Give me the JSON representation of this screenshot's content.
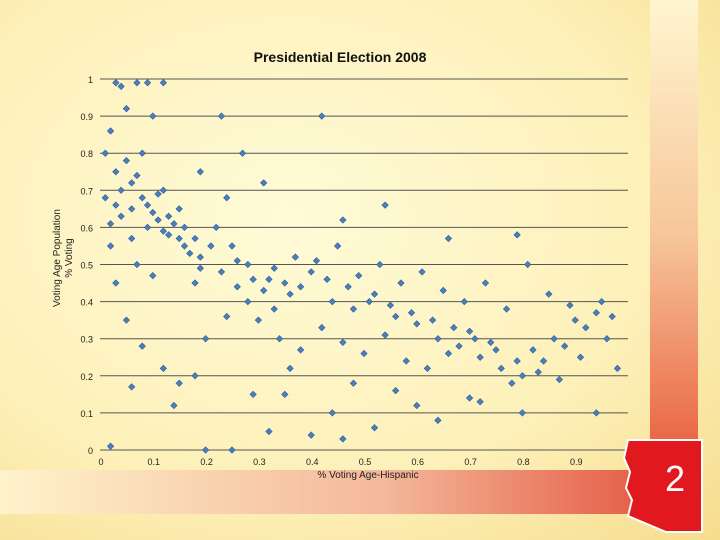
{
  "chart_data": {
    "type": "scatter",
    "title": "Presidential Election 2008",
    "xlabel": "% Voting Age-Hispanic",
    "ylabel_line1": "Voting Age Population",
    "ylabel_line2": "% Voting",
    "xlim": [
      0,
      1
    ],
    "ylim": [
      0,
      1
    ],
    "xticks": [
      "0",
      "0.1",
      "0.2",
      "0.3",
      "0.4",
      "0.5",
      "0.6",
      "0.7",
      "0.8",
      "0.9"
    ],
    "yticks": [
      "0",
      "0.1",
      "0.2",
      "0.3",
      "0.4",
      "0.5",
      "0.6",
      "0.7",
      "0.8",
      "0.9",
      "1"
    ],
    "grid": "horizontal",
    "marker_color": "#4a7ebd",
    "points": [
      [
        0.03,
        0.99
      ],
      [
        0.04,
        0.98
      ],
      [
        0.07,
        0.99
      ],
      [
        0.09,
        0.99
      ],
      [
        0.12,
        0.99
      ],
      [
        0.06,
        0.72
      ],
      [
        0.08,
        0.68
      ],
      [
        0.02,
        0.86
      ],
      [
        0.05,
        0.92
      ],
      [
        0.1,
        0.9
      ],
      [
        0.01,
        0.8
      ],
      [
        0.03,
        0.75
      ],
      [
        0.12,
        0.7
      ],
      [
        0.15,
        0.65
      ],
      [
        0.04,
        0.63
      ],
      [
        0.09,
        0.6
      ],
      [
        0.13,
        0.58
      ],
      [
        0.02,
        0.55
      ],
      [
        0.06,
        0.57
      ],
      [
        0.11,
        0.62
      ],
      [
        0.16,
        0.55
      ],
      [
        0.07,
        0.5
      ],
      [
        0.19,
        0.52
      ],
      [
        0.22,
        0.6
      ],
      [
        0.25,
        0.55
      ],
      [
        0.28,
        0.5
      ],
      [
        0.03,
        0.45
      ],
      [
        0.1,
        0.47
      ],
      [
        0.18,
        0.45
      ],
      [
        0.26,
        0.44
      ],
      [
        0.32,
        0.46
      ],
      [
        0.36,
        0.42
      ],
      [
        0.4,
        0.48
      ],
      [
        0.44,
        0.4
      ],
      [
        0.48,
        0.38
      ],
      [
        0.52,
        0.42
      ],
      [
        0.56,
        0.36
      ],
      [
        0.6,
        0.34
      ],
      [
        0.64,
        0.3
      ],
      [
        0.68,
        0.28
      ],
      [
        0.72,
        0.25
      ],
      [
        0.76,
        0.22
      ],
      [
        0.8,
        0.2
      ],
      [
        0.84,
        0.24
      ],
      [
        0.88,
        0.28
      ],
      [
        0.92,
        0.33
      ],
      [
        0.95,
        0.4
      ],
      [
        0.98,
        0.22
      ],
      [
        0.3,
        0.35
      ],
      [
        0.34,
        0.3
      ],
      [
        0.38,
        0.27
      ],
      [
        0.42,
        0.33
      ],
      [
        0.46,
        0.29
      ],
      [
        0.5,
        0.26
      ],
      [
        0.54,
        0.31
      ],
      [
        0.58,
        0.24
      ],
      [
        0.62,
        0.22
      ],
      [
        0.66,
        0.26
      ],
      [
        0.7,
        0.32
      ],
      [
        0.74,
        0.29
      ],
      [
        0.78,
        0.18
      ],
      [
        0.82,
        0.27
      ],
      [
        0.86,
        0.3
      ],
      [
        0.9,
        0.35
      ],
      [
        0.94,
        0.37
      ],
      [
        0.05,
        0.35
      ],
      [
        0.08,
        0.28
      ],
      [
        0.12,
        0.22
      ],
      [
        0.15,
        0.18
      ],
      [
        0.2,
        0.3
      ],
      [
        0.24,
        0.36
      ],
      [
        0.28,
        0.4
      ],
      [
        0.33,
        0.38
      ],
      [
        0.37,
        0.52
      ],
      [
        0.41,
        0.51
      ],
      [
        0.45,
        0.55
      ],
      [
        0.49,
        0.47
      ],
      [
        0.53,
        0.5
      ],
      [
        0.57,
        0.45
      ],
      [
        0.61,
        0.48
      ],
      [
        0.65,
        0.43
      ],
      [
        0.69,
        0.4
      ],
      [
        0.73,
        0.45
      ],
      [
        0.77,
        0.38
      ],
      [
        0.81,
        0.5
      ],
      [
        0.85,
        0.42
      ],
      [
        0.89,
        0.39
      ],
      [
        0.23,
        0.9
      ],
      [
        0.42,
        0.9
      ],
      [
        0.27,
        0.8
      ],
      [
        0.31,
        0.72
      ],
      [
        0.19,
        0.75
      ],
      [
        0.24,
        0.68
      ],
      [
        0.46,
        0.62
      ],
      [
        0.54,
        0.66
      ],
      [
        0.66,
        0.57
      ],
      [
        0.79,
        0.58
      ],
      [
        0.35,
        0.15
      ],
      [
        0.44,
        0.1
      ],
      [
        0.52,
        0.06
      ],
      [
        0.6,
        0.12
      ],
      [
        0.7,
        0.14
      ],
      [
        0.8,
        0.1
      ],
      [
        0.94,
        0.1
      ],
      [
        0.2,
        0.0
      ],
      [
        0.25,
        0.0
      ],
      [
        0.32,
        0.05
      ],
      [
        0.4,
        0.04
      ],
      [
        0.46,
        0.03
      ],
      [
        0.02,
        0.01
      ],
      [
        0.06,
        0.17
      ],
      [
        0.14,
        0.12
      ],
      [
        0.18,
        0.2
      ],
      [
        0.29,
        0.15
      ],
      [
        0.36,
        0.22
      ],
      [
        0.48,
        0.18
      ],
      [
        0.56,
        0.16
      ],
      [
        0.64,
        0.08
      ],
      [
        0.72,
        0.13
      ],
      [
        0.01,
        0.68
      ],
      [
        0.02,
        0.61
      ],
      [
        0.03,
        0.66
      ],
      [
        0.04,
        0.7
      ],
      [
        0.05,
        0.78
      ],
      [
        0.06,
        0.65
      ],
      [
        0.07,
        0.74
      ],
      [
        0.08,
        0.8
      ],
      [
        0.09,
        0.66
      ],
      [
        0.1,
        0.64
      ],
      [
        0.11,
        0.69
      ],
      [
        0.12,
        0.59
      ],
      [
        0.13,
        0.63
      ],
      [
        0.14,
        0.61
      ],
      [
        0.15,
        0.57
      ],
      [
        0.16,
        0.6
      ],
      [
        0.17,
        0.53
      ],
      [
        0.18,
        0.57
      ],
      [
        0.19,
        0.49
      ],
      [
        0.21,
        0.55
      ],
      [
        0.23,
        0.48
      ],
      [
        0.26,
        0.51
      ],
      [
        0.29,
        0.46
      ],
      [
        0.31,
        0.43
      ],
      [
        0.33,
        0.49
      ],
      [
        0.35,
        0.45
      ],
      [
        0.38,
        0.44
      ],
      [
        0.43,
        0.46
      ],
      [
        0.47,
        0.44
      ],
      [
        0.51,
        0.4
      ],
      [
        0.55,
        0.39
      ],
      [
        0.59,
        0.37
      ],
      [
        0.63,
        0.35
      ],
      [
        0.67,
        0.33
      ],
      [
        0.71,
        0.3
      ],
      [
        0.75,
        0.27
      ],
      [
        0.79,
        0.24
      ],
      [
        0.83,
        0.21
      ],
      [
        0.87,
        0.19
      ],
      [
        0.91,
        0.25
      ],
      [
        0.96,
        0.3
      ],
      [
        0.97,
        0.36
      ]
    ]
  },
  "badge": {
    "number": "2"
  }
}
